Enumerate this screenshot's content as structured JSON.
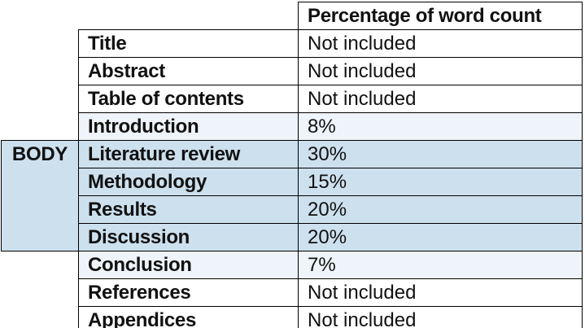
{
  "table": {
    "header": "Percentage of word count",
    "body_label": "BODY",
    "rows": [
      {
        "section": "Title",
        "value": "Not included",
        "shade": "none"
      },
      {
        "section": "Abstract",
        "value": "Not included",
        "shade": "none"
      },
      {
        "section": "Table of contents",
        "value": "Not included",
        "shade": "none"
      },
      {
        "section": "Introduction",
        "value": "8%",
        "shade": "light"
      },
      {
        "section": "Literature review",
        "value": "30%",
        "shade": "medium"
      },
      {
        "section": "Methodology",
        "value": "15%",
        "shade": "medium"
      },
      {
        "section": "Results",
        "value": "20%",
        "shade": "medium"
      },
      {
        "section": "Discussion",
        "value": "20%",
        "shade": "medium"
      },
      {
        "section": "Conclusion",
        "value": "7%",
        "shade": "light"
      },
      {
        "section": "References",
        "value": "Not included",
        "shade": "none"
      },
      {
        "section": "Appendices",
        "value": "Not included",
        "shade": "none"
      }
    ],
    "colors": {
      "medium_blue": "#CDE0EE",
      "light_blue": "#EFF4FA",
      "border": "#000000",
      "text": "#111111",
      "background": "#FFFFFF"
    }
  }
}
